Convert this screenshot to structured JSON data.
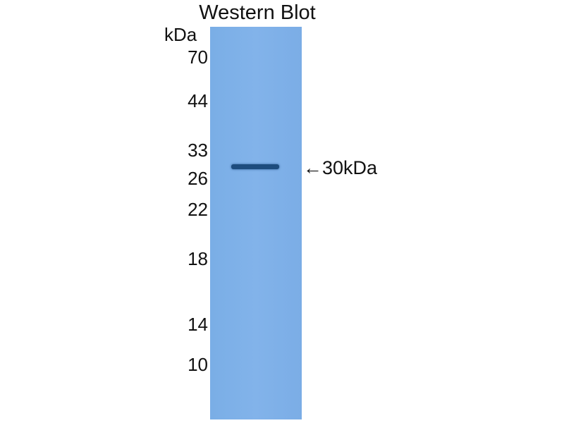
{
  "title": "Western Blot",
  "unit_label": "kDa",
  "markers": [
    "70",
    "44",
    "33",
    "26",
    "22",
    "18",
    "14",
    "10"
  ],
  "band_annotation": "←30kDa",
  "colors": {
    "membrane": "#7fb0e8",
    "band": "#1d4c7e"
  }
}
